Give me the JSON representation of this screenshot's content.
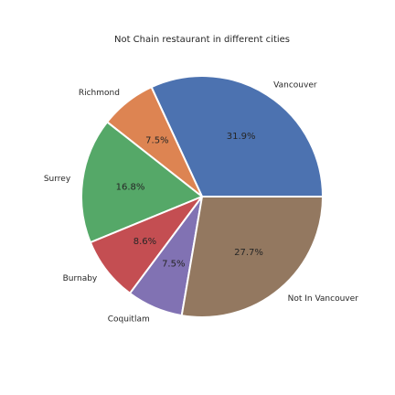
{
  "chart_data": {
    "type": "pie",
    "title": "Not Chain restaurant in different cities",
    "start_angle": 0,
    "direction": "counterclockwise",
    "slices": [
      {
        "label": "Vancouver",
        "value": 31.9,
        "pct_text": "31.9%",
        "color": "#4c72b0"
      },
      {
        "label": "Richmond",
        "value": 7.5,
        "pct_text": "7.5%",
        "color": "#dd8452"
      },
      {
        "label": "Surrey",
        "value": 16.8,
        "pct_text": "16.8%",
        "color": "#55a868"
      },
      {
        "label": "Burnaby",
        "value": 8.6,
        "pct_text": "8.6%",
        "color": "#c44e52"
      },
      {
        "label": "Coquitlam",
        "value": 7.5,
        "pct_text": "7.5%",
        "color": "#8172b3"
      },
      {
        "label": "Not In Vancouver",
        "value": 27.7,
        "pct_text": "27.7%",
        "color": "#937860"
      }
    ]
  }
}
